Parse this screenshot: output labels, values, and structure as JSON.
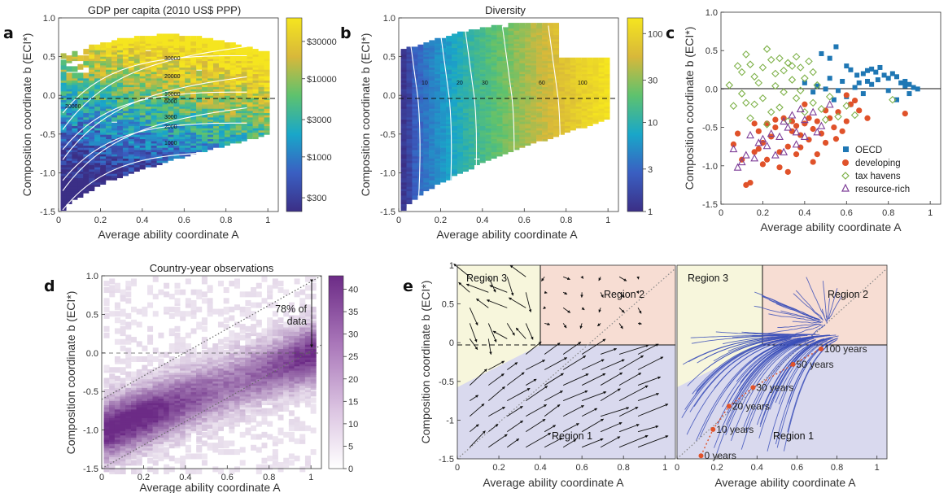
{
  "panels": {
    "a": {
      "label": "a",
      "title": "GDP per capita (2010 US$ PPP)",
      "xlabel": "Average ability coordinate A",
      "ylabel": "Composition coordinate b (ECI*)",
      "xticks": [
        "0",
        "0.2",
        "0.4",
        "0.6",
        "0.8",
        "1"
      ],
      "yticks": [
        "1.0",
        "0.5",
        "0.0",
        "-0.5",
        "-1.0",
        "-1.5"
      ],
      "colorbar_ticks": [
        "$30000",
        "$10000",
        "$3000",
        "$1000",
        "$300"
      ],
      "contour_labels": [
        "30000",
        "20000",
        "10000",
        "6000",
        "3000",
        "2000",
        "1000",
        "30000"
      ]
    },
    "b": {
      "label": "b",
      "title": "Diversity",
      "xlabel": "Average ability coordinate A",
      "ylabel": "Composition coordinate b (ECI*)",
      "xticks": [
        "0",
        "0.2",
        "0.4",
        "0.6",
        "0.8",
        "1"
      ],
      "yticks": [
        "1.0",
        "0.5",
        "0.0",
        "-0.5",
        "-1.0",
        "-1.5"
      ],
      "colorbar_ticks": [
        "100",
        "30",
        "10",
        "3",
        "1"
      ],
      "contour_labels": [
        "10",
        "20",
        "30",
        "60",
        "100"
      ]
    },
    "c": {
      "label": "c",
      "xlabel": "Average ability coordinate A",
      "ylabel": "Composition coordinate b (ECI*)",
      "xticks": [
        "0",
        "0.2",
        "0.4",
        "0.6",
        "0.8",
        "1"
      ],
      "yticks": [
        "1.0",
        "0.5",
        "0.0",
        "-0.5",
        "-1.0",
        "-1.5"
      ],
      "legend": [
        "OECD",
        "developing",
        "tax havens",
        "resource-rich"
      ]
    },
    "d": {
      "label": "d",
      "title": "Country-year observations",
      "xlabel": "Average ability coordinate A",
      "ylabel": "Composition coordinate b (ECI*)",
      "xticks": [
        "0",
        "0.2",
        "0.4",
        "0.6",
        "0.8",
        "1"
      ],
      "yticks": [
        "1.0",
        "0.5",
        "0.0",
        "-0.5",
        "-1.0",
        "-1.5"
      ],
      "colorbar_ticks": [
        "40",
        "35",
        "30",
        "25",
        "20",
        "15",
        "10",
        "5",
        "0"
      ],
      "annotation_line1": "78% of",
      "annotation_line2": "data"
    },
    "e": {
      "label": "e",
      "xlabel": "Average ability coordinate A",
      "ylabel": "Composition coordinate b (ECI*)",
      "xticks": [
        "0",
        "0.2",
        "0.4",
        "0.6",
        "0.8",
        "1"
      ],
      "yticks": [
        "1",
        "0.5",
        "0",
        "-0.5",
        "-1",
        "-1.5"
      ],
      "regions": [
        "Region 1",
        "Region 2",
        "Region 3"
      ],
      "years": [
        "0 years",
        "10 years",
        "20 years",
        "30 years",
        "50 years",
        "100 years"
      ]
    }
  },
  "colors": {
    "oecd": "#1f77b4",
    "developing": "#e0522a",
    "tax_havens": "#7fb24a",
    "resource_rich": "#7e3f98",
    "region1": "#d9d9ee",
    "region2": "#f7ddd3",
    "region3": "#f7f6dc",
    "stream": "#3b4fb8",
    "trajectory": "#e0522a",
    "heat_purple": "#7a3b8f"
  },
  "chart_data": [
    {
      "panel": "a",
      "type": "heatmap",
      "title": "GDP per capita (2010 US$ PPP)",
      "xlabel": "Average ability coordinate A",
      "ylabel": "Composition coordinate b (ECI*)",
      "xlim": [
        0,
        1.05
      ],
      "ylim": [
        -1.5,
        1.0
      ],
      "colorbar": {
        "scale": "log",
        "range": [
          200,
          60000
        ],
        "ticks": [
          300,
          1000,
          3000,
          10000,
          30000
        ]
      }
    },
    {
      "panel": "b",
      "type": "heatmap",
      "title": "Diversity",
      "xlabel": "Average ability coordinate A",
      "ylabel": "Composition coordinate b (ECI*)",
      "xlim": [
        0,
        1.05
      ],
      "ylim": [
        -1.5,
        1.0
      ],
      "colorbar": {
        "scale": "log",
        "range": [
          1,
          150
        ],
        "ticks": [
          1,
          3,
          10,
          30,
          100
        ]
      }
    },
    {
      "panel": "c",
      "type": "scatter",
      "xlabel": "Average ability coordinate A",
      "ylabel": "Composition coordinate b (ECI*)",
      "xlim": [
        0,
        1.05
      ],
      "ylim": [
        -1.5,
        1.0
      ],
      "series": [
        {
          "name": "OECD",
          "points": [
            [
              0.48,
              0.46
            ],
            [
              0.52,
              0.4
            ],
            [
              0.55,
              0.55
            ],
            [
              0.6,
              0.3
            ],
            [
              0.62,
              0.25
            ],
            [
              0.65,
              0.18
            ],
            [
              0.68,
              0.2
            ],
            [
              0.7,
              0.24
            ],
            [
              0.72,
              0.26
            ],
            [
              0.74,
              0.22
            ],
            [
              0.76,
              0.28
            ],
            [
              0.78,
              0.18
            ],
            [
              0.8,
              0.14
            ],
            [
              0.82,
              0.2
            ],
            [
              0.84,
              0.16
            ],
            [
              0.86,
              0.08
            ],
            [
              0.88,
              0.04
            ],
            [
              0.9,
              0.06
            ],
            [
              0.92,
              0.02
            ],
            [
              0.94,
              0.0
            ],
            [
              0.66,
              0.08
            ],
            [
              0.64,
              0.02
            ],
            [
              0.58,
              0.1
            ],
            [
              0.56,
              -0.02
            ],
            [
              0.5,
              0.0
            ],
            [
              0.46,
              0.04
            ],
            [
              0.44,
              -0.04
            ],
            [
              0.4,
              0.08
            ],
            [
              0.6,
              -0.1
            ],
            [
              0.62,
              -0.2
            ],
            [
              0.7,
              0.1
            ],
            [
              0.72,
              0.06
            ],
            [
              0.75,
              0.12
            ],
            [
              0.8,
              -0.02
            ],
            [
              0.84,
              -0.14
            ],
            [
              0.88,
              0.1
            ],
            [
              0.9,
              -0.06
            ],
            [
              0.54,
              -0.14
            ],
            [
              0.68,
              -0.06
            ],
            [
              0.52,
              0.14
            ]
          ]
        },
        {
          "name": "developing",
          "points": [
            [
              0.06,
              -0.72
            ],
            [
              0.08,
              -0.58
            ],
            [
              0.1,
              -0.92
            ],
            [
              0.12,
              -1.25
            ],
            [
              0.14,
              -1.22
            ],
            [
              0.16,
              -0.82
            ],
            [
              0.18,
              -0.55
            ],
            [
              0.2,
              -0.7
            ],
            [
              0.22,
              -0.45
            ],
            [
              0.24,
              -0.62
            ],
            [
              0.26,
              -0.5
            ],
            [
              0.28,
              -0.82
            ],
            [
              0.3,
              -0.38
            ],
            [
              0.32,
              -0.75
            ],
            [
              0.34,
              -0.55
            ],
            [
              0.36,
              -0.48
            ],
            [
              0.38,
              -0.6
            ],
            [
              0.4,
              -0.45
            ],
            [
              0.42,
              -0.66
            ],
            [
              0.44,
              -0.52
            ],
            [
              0.46,
              -0.42
            ],
            [
              0.48,
              -0.58
            ],
            [
              0.5,
              -0.7
            ],
            [
              0.52,
              -0.38
            ],
            [
              0.54,
              -0.5
            ],
            [
              0.56,
              -0.3
            ],
            [
              0.58,
              -0.55
            ],
            [
              0.6,
              -0.42
            ],
            [
              0.62,
              -0.2
            ],
            [
              0.64,
              -0.15
            ],
            [
              0.66,
              -0.28
            ],
            [
              0.7,
              -0.38
            ],
            [
              0.32,
              -1.08
            ],
            [
              0.28,
              -1.02
            ],
            [
              0.22,
              -0.92
            ],
            [
              0.44,
              -0.95
            ],
            [
              0.36,
              -0.85
            ],
            [
              0.18,
              -0.78
            ],
            [
              0.26,
              -0.4
            ],
            [
              0.4,
              -0.2
            ],
            [
              0.5,
              -0.28
            ],
            [
              0.55,
              -0.65
            ],
            [
              0.6,
              -0.08
            ],
            [
              0.88,
              -0.32
            ],
            [
              0.46,
              -0.85
            ],
            [
              0.34,
              -0.42
            ],
            [
              0.16,
              -0.45
            ],
            [
              0.2,
              -0.98
            ],
            [
              0.42,
              -0.38
            ],
            [
              0.38,
              -0.76
            ]
          ]
        },
        {
          "name": "tax havens",
          "points": [
            [
              0.04,
              0.05
            ],
            [
              0.08,
              0.3
            ],
            [
              0.1,
              0.22
            ],
            [
              0.12,
              0.45
            ],
            [
              0.14,
              0.32
            ],
            [
              0.16,
              0.16
            ],
            [
              0.18,
              0.08
            ],
            [
              0.2,
              0.28
            ],
            [
              0.22,
              0.52
            ],
            [
              0.24,
              0.38
            ],
            [
              0.26,
              0.2
            ],
            [
              0.28,
              0.4
            ],
            [
              0.3,
              0.24
            ],
            [
              0.32,
              0.34
            ],
            [
              0.34,
              0.12
            ],
            [
              0.36,
              0.42
            ],
            [
              0.38,
              0.28
            ],
            [
              0.4,
              0.14
            ],
            [
              0.42,
              0.36
            ],
            [
              0.44,
              0.22
            ],
            [
              0.12,
              -0.18
            ],
            [
              0.14,
              -0.38
            ],
            [
              0.16,
              -0.2
            ],
            [
              0.2,
              -0.12
            ],
            [
              0.24,
              -0.3
            ],
            [
              0.28,
              -0.24
            ],
            [
              0.3,
              -0.04
            ],
            [
              0.32,
              -0.42
            ],
            [
              0.36,
              -0.12
            ],
            [
              0.4,
              -0.3
            ],
            [
              0.44,
              -0.18
            ],
            [
              0.48,
              -0.26
            ],
            [
              0.52,
              -0.1
            ],
            [
              0.56,
              -0.36
            ],
            [
              0.6,
              -0.22
            ],
            [
              0.64,
              -0.34
            ],
            [
              0.06,
              -0.22
            ],
            [
              0.1,
              -0.06
            ],
            [
              0.26,
              0.04
            ],
            [
              0.34,
              0.3
            ],
            [
              0.46,
              0.05
            ],
            [
              0.5,
              -0.4
            ],
            [
              0.38,
              -0.02
            ],
            [
              0.22,
              -0.46
            ],
            [
              0.82,
              -0.14
            ]
          ]
        },
        {
          "name": "resource-rich",
          "points": [
            [
              0.06,
              -0.78
            ],
            [
              0.08,
              -1.02
            ],
            [
              0.1,
              -0.95
            ],
            [
              0.12,
              -0.86
            ],
            [
              0.14,
              -0.6
            ],
            [
              0.16,
              -0.9
            ],
            [
              0.18,
              -0.7
            ],
            [
              0.2,
              -0.65
            ],
            [
              0.22,
              -0.74
            ],
            [
              0.24,
              -0.58
            ],
            [
              0.26,
              -0.86
            ],
            [
              0.28,
              -0.62
            ],
            [
              0.3,
              -0.42
            ],
            [
              0.32,
              -0.5
            ],
            [
              0.34,
              -0.34
            ],
            [
              0.36,
              -0.56
            ],
            [
              0.38,
              -0.26
            ],
            [
              0.4,
              -0.4
            ],
            [
              0.44,
              -0.3
            ],
            [
              0.48,
              -0.48
            ],
            [
              0.52,
              -0.2
            ],
            [
              0.3,
              -0.82
            ],
            [
              0.36,
              -0.72
            ],
            [
              0.4,
              -0.62
            ],
            [
              0.46,
              -0.56
            ]
          ]
        }
      ]
    },
    {
      "panel": "d",
      "type": "heatmap",
      "title": "Country-year observations",
      "xlabel": "Average ability coordinate A",
      "ylabel": "Composition coordinate b (ECI*)",
      "xlim": [
        0,
        1.05
      ],
      "ylim": [
        -1.5,
        1.0
      ],
      "colorbar": {
        "range": [
          0,
          43
        ],
        "ticks": [
          0,
          5,
          10,
          15,
          20,
          25,
          30,
          35,
          40
        ]
      }
    },
    {
      "panel": "e",
      "type": "line",
      "xlabel": "Average ability coordinate A",
      "ylabel": "Composition coordinate b (ECI*)",
      "xlim": [
        0,
        1.05
      ],
      "ylim": [
        -1.5,
        1.0
      ],
      "trajectory": {
        "x": [
          0.12,
          0.18,
          0.26,
          0.38,
          0.58,
          0.72
        ],
        "y": [
          -1.46,
          -1.12,
          -0.82,
          -0.58,
          -0.28,
          -0.08
        ],
        "labels": [
          "0 years",
          "10 years",
          "20 years",
          "30 years",
          "50 years",
          "100 years"
        ]
      }
    }
  ]
}
